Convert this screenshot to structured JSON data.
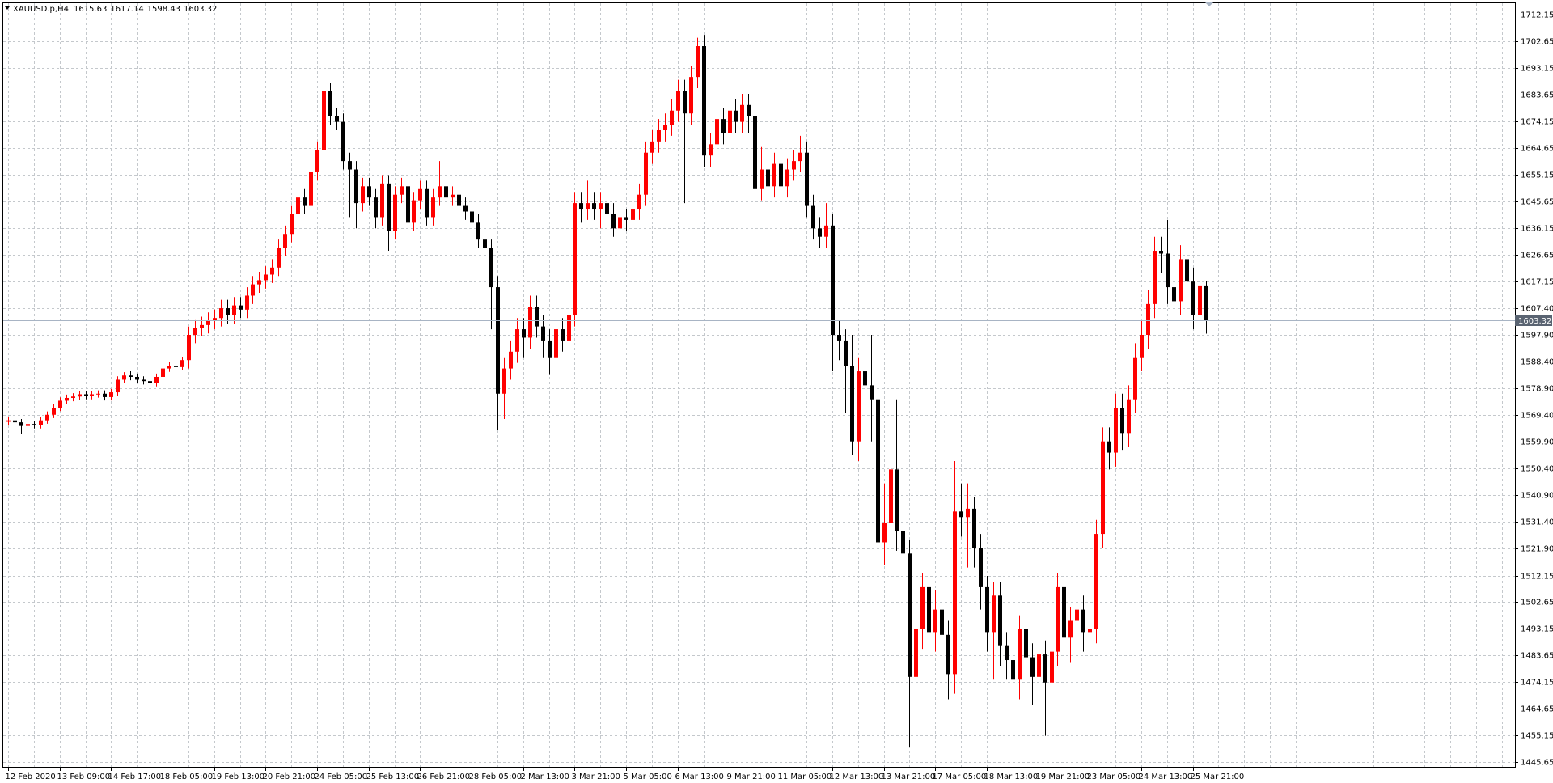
{
  "chart_data": {
    "type": "candlestick",
    "title": "XAUUSD.p,H4",
    "up_color": "#ff0000",
    "down_color": "#000000",
    "price_line_color": "#a8b4c4",
    "grid": true,
    "ylim": [
      1443.92,
      1716.3
    ],
    "yticks": [
      1712.15,
      1702.65,
      1693.15,
      1683.65,
      1674.15,
      1664.65,
      1655.15,
      1645.65,
      1636.15,
      1626.65,
      1617.15,
      {
        "value": 1607.4,
        "label": "1607.40"
      },
      {
        "value": 1597.9,
        "label": "1597.90"
      },
      {
        "value": 1588.4,
        "label": "1588.40"
      },
      {
        "value": 1578.9,
        "label": "1578.90"
      },
      {
        "value": 1569.4,
        "label": "1569.40"
      },
      {
        "value": 1559.9,
        "label": "1559.90"
      },
      {
        "value": 1550.4,
        "label": "1550.40"
      },
      {
        "value": 1540.9,
        "label": "1540.90"
      },
      {
        "value": 1531.4,
        "label": "1531.40"
      },
      {
        "value": 1521.9,
        "label": "1521.90"
      },
      1512.15,
      1502.65,
      1493.15,
      1483.65,
      1474.15,
      1464.65,
      1455.15,
      1445.65
    ],
    "categories": [
      "12 Feb 2020",
      null,
      null,
      null,
      null,
      null,
      null,
      null,
      "13 Feb 09:00",
      null,
      null,
      null,
      null,
      null,
      null,
      null,
      "14 Feb 17:00",
      null,
      null,
      null,
      null,
      null,
      null,
      null,
      "18 Feb 05:00",
      null,
      null,
      null,
      null,
      null,
      null,
      null,
      "19 Feb 13:00",
      null,
      null,
      null,
      null,
      null,
      null,
      null,
      "20 Feb 21:00",
      null,
      null,
      null,
      null,
      null,
      null,
      null,
      "24 Feb 05:00",
      null,
      null,
      null,
      null,
      null,
      null,
      null,
      "25 Feb 13:00",
      null,
      null,
      null,
      null,
      null,
      null,
      null,
      "26 Feb 21:00",
      null,
      null,
      null,
      null,
      null,
      null,
      null,
      "28 Feb 05:00",
      null,
      null,
      null,
      null,
      null,
      null,
      null,
      "2 Mar 13:00",
      null,
      null,
      null,
      null,
      null,
      null,
      null,
      "3 Mar 21:00",
      null,
      null,
      null,
      null,
      null,
      null,
      null,
      "5 Mar 05:00",
      null,
      null,
      null,
      null,
      null,
      null,
      null,
      "6 Mar 13:00",
      null,
      null,
      null,
      null,
      null,
      null,
      null,
      "9 Mar 21:00",
      null,
      null,
      null,
      null,
      null,
      null,
      null,
      "11 Mar 05:00",
      null,
      null,
      null,
      null,
      null,
      null,
      null,
      "12 Mar 13:00",
      null,
      null,
      null,
      null,
      null,
      null,
      null,
      "13 Mar 21:00",
      null,
      null,
      null,
      null,
      null,
      null,
      null,
      "17 Mar 05:00",
      null,
      null,
      null,
      null,
      null,
      null,
      null,
      "18 Mar 13:00",
      null,
      null,
      null,
      null,
      null,
      null,
      null,
      "19 Mar 21:00",
      null,
      null,
      null,
      null,
      null,
      null,
      null,
      "23 Mar 05:00",
      null,
      null,
      null,
      null,
      null,
      null,
      null,
      "24 Mar 13:00",
      null,
      null,
      null,
      null,
      null,
      null,
      null,
      "25 Mar 21:00",
      null,
      null
    ],
    "open": [
      1567.0,
      1567.5,
      1566.8,
      1565.5,
      1566.2,
      1565.8,
      1567.5,
      1569.5,
      1572.0,
      1574.5,
      1575.5,
      1576.0,
      1576.8,
      1576.2,
      1576.8,
      1577.0,
      1575.8,
      1577.5,
      1582.0,
      1583.5,
      1583.0,
      1582.0,
      1581.5,
      1580.8,
      1583.0,
      1586.0,
      1587.0,
      1586.5,
      1589.0,
      1598.0,
      1600.5,
      1601.5,
      1603.0,
      1604.0,
      1607.5,
      1605.0,
      1608.5,
      1607.0,
      1612.0,
      1616.0,
      1617.5,
      1619.5,
      1622.0,
      1629.0,
      1634.0,
      1641.0,
      1647.0,
      1644.0,
      1656,
      1664,
      1685,
      1676,
      1674,
      1660,
      1657,
      1645,
      1651,
      1647,
      1640,
      1652,
      1635,
      1648,
      1651,
      1638,
      1646,
      1650,
      1640,
      1647,
      1651,
      1647,
      1648,
      1644,
      1642,
      1638,
      1632,
      1629,
      1615,
      1577,
      1586,
      1592,
      1600,
      1597,
      1608,
      1601,
      1596,
      1590,
      1600,
      1596,
      1605,
      1645,
      1643,
      1645,
      1643,
      1645,
      1641,
      1636,
      1640,
      1639,
      1643,
      1648,
      1663,
      1667,
      1671,
      1673,
      1678,
      1685,
      1677,
      1690,
      1701,
      1662,
      1666,
      1675,
      1670,
      1678,
      1674,
      1680,
      1676,
      1650,
      1657,
      1651,
      1659,
      1651,
      1657,
      1660,
      1663,
      1644,
      1636,
      1633,
      1637,
      1598,
      1596,
      1587,
      1560,
      1585,
      1580,
      1575,
      1524,
      1531,
      1550,
      1528,
      1520,
      1476,
      1493,
      1508,
      1492,
      1500,
      1491,
      1477,
      1535,
      1533,
      1536,
      1522,
      1508,
      1492,
      1505,
      1487,
      1482,
      1475,
      1493,
      1483,
      1476,
      1484,
      1474,
      1485,
      1508,
      1490,
      1496,
      1500,
      1492,
      1493,
      1527,
      1560,
      1556,
      1572,
      1563,
      1575,
      1590,
      1598,
      1609,
      1628,
      1627,
      1615,
      1610,
      1625,
      1617,
      1605,
      1615.63
    ],
    "high": [
      1568.7,
      1568.7,
      1568.0,
      1567.4,
      1567.4,
      1568.7,
      1570.7,
      1573.2,
      1575.7,
      1576.7,
      1577.2,
      1578.0,
      1578.0,
      1578.0,
      1578.2,
      1578.2,
      1578.7,
      1583.2,
      1584.7,
      1585.0,
      1584.2,
      1583.2,
      1582.7,
      1584.2,
      1587.2,
      1588.2,
      1588.2,
      1590.2,
      1601,
      1603.5,
      1604.5,
      1606,
      1607,
      1610.5,
      1610.5,
      1611.5,
      1611.5,
      1615,
      1619,
      1620.5,
      1622.5,
      1625,
      1632,
      1637,
      1644,
      1650,
      1650,
      1659,
      1667,
      1690,
      1688,
      1679,
      1677,
      1663,
      1660,
      1654,
      1654,
      1650,
      1655,
      1655,
      1651,
      1654,
      1654,
      1649,
      1653,
      1653,
      1650,
      1660,
      1654,
      1651,
      1651,
      1647,
      1645,
      1641,
      1635,
      1632,
      1619,
      1590,
      1596,
      1604,
      1604,
      1612,
      1612,
      1605,
      1600,
      1604,
      1604,
      1609,
      1649,
      1649,
      1653,
      1649,
      1649,
      1649,
      1645,
      1644,
      1643,
      1647,
      1652,
      1667,
      1671,
      1675,
      1677,
      1682,
      1689,
      1689,
      1694,
      1704,
      1705,
      1670,
      1681,
      1679,
      1685,
      1682,
      1684,
      1684,
      1680,
      1665,
      1661,
      1663,
      1663,
      1661,
      1664,
      1669,
      1667,
      1648,
      1640,
      1645,
      1641,
      1603,
      1600,
      1598,
      1590,
      1590,
      1598,
      1580,
      1545,
      1555,
      1575,
      1535,
      1525,
      1508,
      1513,
      1513,
      1507,
      1505,
      1496,
      1553,
      1545,
      1545,
      1540,
      1527,
      1512,
      1510,
      1510,
      1492,
      1487,
      1498,
      1498,
      1488,
      1489,
      1489,
      1490,
      1513,
      1512,
      1501,
      1505,
      1505,
      1498,
      1532,
      1565,
      1565,
      1577,
      1577,
      1580,
      1595,
      1603,
      1614,
      1633,
      1633,
      1639,
      1620,
      1630,
      1628,
      1622,
      1620,
      1617.14
    ],
    "low": [
      1565.8,
      1565.6,
      1562.5,
      1564.3,
      1564.6,
      1564.6,
      1566.3,
      1568.3,
      1570.8,
      1573.3,
      1574.3,
      1574.8,
      1575.0,
      1575.0,
      1575.6,
      1574.6,
      1574.6,
      1576.3,
      1580.8,
      1581.8,
      1580.8,
      1580.3,
      1579.6,
      1579.6,
      1581.8,
      1584.8,
      1585.3,
      1585.3,
      1586,
      1595,
      1597.5,
      1598.5,
      1600,
      1601,
      1602,
      1602,
      1604,
      1604,
      1609,
      1613,
      1614.5,
      1616.5,
      1619,
      1626,
      1631,
      1638,
      1641,
      1641,
      1653,
      1661,
      1673,
      1671,
      1657,
      1640,
      1636,
      1642,
      1644,
      1636,
      1637,
      1628,
      1632,
      1645,
      1628,
      1635,
      1643,
      1637,
      1637,
      1644,
      1644,
      1644,
      1641,
      1639,
      1630,
      1629,
      1612,
      1600,
      1564,
      1568,
      1582,
      1588,
      1590,
      1593,
      1597,
      1590,
      1584,
      1584,
      1592,
      1592,
      1601,
      1638,
      1639,
      1639,
      1636,
      1630,
      1633,
      1633,
      1635,
      1635,
      1639,
      1644,
      1659,
      1663,
      1667,
      1669,
      1674,
      1645,
      1673,
      1686,
      1658,
      1658,
      1662,
      1666,
      1666,
      1670,
      1670,
      1670,
      1646,
      1646,
      1647,
      1647,
      1643,
      1647,
      1653,
      1656,
      1640,
      1632,
      1629,
      1629,
      1585,
      1589,
      1570,
      1555,
      1553,
      1573,
      1560,
      1508,
      1516,
      1524,
      1521,
      1500,
      1451,
      1467,
      1486,
      1485,
      1485,
      1484,
      1468,
      1470,
      1526,
      1515,
      1515,
      1500,
      1485,
      1475,
      1480,
      1475,
      1466,
      1468,
      1476,
      1466,
      1469,
      1455,
      1467,
      1480,
      1483,
      1481,
      1488,
      1485,
      1486,
      1488,
      1522,
      1550,
      1551,
      1557,
      1558,
      1570,
      1585,
      1593,
      1604,
      1620,
      1609,
      1599,
      1605,
      1592,
      1600,
      1600,
      1598.43
    ],
    "close": [
      1567.5,
      1566.8,
      1565.5,
      1566.2,
      1565.8,
      1567.5,
      1569.5,
      1572.0,
      1574.5,
      1575.5,
      1576.0,
      1576.8,
      1576.2,
      1576.8,
      1577.0,
      1575.8,
      1577.5,
      1582.0,
      1583.5,
      1583.0,
      1582.0,
      1581.5,
      1580.8,
      1583.0,
      1586.0,
      1587.0,
      1586.5,
      1589.0,
      1598.0,
      1600.5,
      1601.5,
      1603.0,
      1604.0,
      1607.5,
      1605.0,
      1608.5,
      1607.0,
      1612.0,
      1616.0,
      1617.5,
      1619.5,
      1622.0,
      1629.0,
      1634.0,
      1641.0,
      1647.0,
      1644.0,
      1656.0,
      1664.0,
      1685.0,
      1676.0,
      1674.0,
      1660.0,
      1657.0,
      1645.0,
      1651.0,
      1647,
      1640,
      1652,
      1635,
      1648,
      1651,
      1638,
      1646,
      1650,
      1640,
      1647,
      1651,
      1647,
      1648,
      1644,
      1642,
      1638,
      1632,
      1629,
      1615,
      1577,
      1586,
      1592,
      1600,
      1597,
      1608,
      1601,
      1596,
      1590,
      1600,
      1596,
      1605,
      1645,
      1643,
      1645,
      1643,
      1645,
      1641,
      1636,
      1640,
      1639,
      1643,
      1648,
      1663,
      1667,
      1671,
      1673,
      1678,
      1685,
      1677,
      1690,
      1701,
      1662,
      1666,
      1675,
      1670,
      1678,
      1674,
      1680,
      1676,
      1650,
      1657,
      1651,
      1659,
      1651,
      1657,
      1660,
      1663,
      1644,
      1636,
      1633,
      1637,
      1598,
      1596,
      1587,
      1560,
      1585,
      1580,
      1575,
      1524,
      1531,
      1550,
      1528,
      1520,
      1476,
      1493,
      1508,
      1492,
      1500,
      1491,
      1477,
      1535,
      1533,
      1536,
      1522,
      1508,
      1492,
      1505,
      1487,
      1482,
      1475,
      1493,
      1483,
      1476,
      1484,
      1474,
      1485,
      1508,
      1490,
      1496,
      1500,
      1492,
      1493,
      1527,
      1560,
      1556,
      1572,
      1563,
      1575,
      1590,
      1598,
      1609,
      1628,
      1627,
      1615,
      1610,
      1625,
      1617,
      1605,
      1615.63,
      1603.32
    ]
  }
}
